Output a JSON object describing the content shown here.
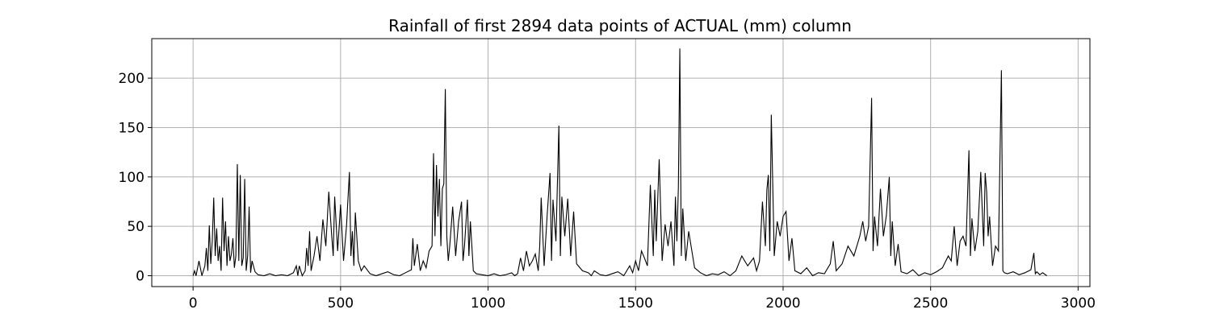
{
  "chart_data": {
    "type": "line",
    "title": "Rainfall of first 2894 data points of ACTUAL (mm) column",
    "xlabel": "",
    "ylabel": "",
    "xlim": [
      -140,
      3040
    ],
    "ylim": [
      -11,
      240
    ],
    "x_ticks": [
      0,
      500,
      1000,
      1500,
      2000,
      2500,
      3000
    ],
    "x_tick_labels": [
      "0",
      "500",
      "1000",
      "1500",
      "2000",
      "2500",
      "3000"
    ],
    "y_ticks": [
      0,
      50,
      100,
      150,
      200
    ],
    "y_tick_labels": [
      "0",
      "50",
      "100",
      "150",
      "200"
    ],
    "grid": true,
    "line_color": "#000000",
    "series": [
      {
        "x": [
          0,
          5,
          10,
          20,
          30,
          40,
          45,
          50,
          55,
          60,
          65,
          70,
          75,
          80,
          85,
          90,
          95,
          100,
          105,
          110,
          115,
          120,
          125,
          130,
          135,
          140,
          145,
          150,
          155,
          160,
          165,
          170,
          175,
          180,
          185,
          190,
          195,
          200,
          210,
          220,
          240,
          260,
          280,
          300,
          320,
          340,
          350,
          355,
          360,
          370,
          380,
          385,
          390,
          395,
          400,
          410,
          420,
          430,
          440,
          450,
          460,
          470,
          475,
          480,
          490,
          500,
          510,
          520,
          530,
          535,
          540,
          545,
          550,
          560,
          570,
          580,
          600,
          620,
          640,
          660,
          680,
          700,
          720,
          740,
          745,
          750,
          760,
          770,
          780,
          790,
          800,
          810,
          815,
          820,
          825,
          830,
          835,
          840,
          845,
          850,
          855,
          860,
          865,
          870,
          880,
          890,
          900,
          910,
          915,
          920,
          930,
          935,
          940,
          950,
          960,
          980,
          1000,
          1020,
          1040,
          1060,
          1080,
          1090,
          1100,
          1110,
          1120,
          1130,
          1140,
          1150,
          1160,
          1170,
          1175,
          1180,
          1190,
          1200,
          1210,
          1215,
          1220,
          1230,
          1240,
          1245,
          1250,
          1260,
          1270,
          1280,
          1290,
          1300,
          1320,
          1340,
          1350,
          1360,
          1380,
          1400,
          1420,
          1440,
          1460,
          1480,
          1490,
          1500,
          1510,
          1520,
          1530,
          1540,
          1550,
          1560,
          1565,
          1570,
          1580,
          1590,
          1600,
          1610,
          1620,
          1630,
          1635,
          1640,
          1645,
          1650,
          1655,
          1660,
          1670,
          1680,
          1700,
          1720,
          1740,
          1760,
          1780,
          1800,
          1820,
          1840,
          1860,
          1880,
          1900,
          1910,
          1920,
          1930,
          1940,
          1945,
          1950,
          1955,
          1960,
          1970,
          1980,
          1990,
          2000,
          2010,
          2020,
          2030,
          2040,
          2060,
          2080,
          2100,
          2120,
          2140,
          2160,
          2170,
          2180,
          2200,
          2220,
          2240,
          2260,
          2270,
          2280,
          2290,
          2300,
          2305,
          2310,
          2320,
          2330,
          2340,
          2350,
          2360,
          2365,
          2370,
          2380,
          2390,
          2400,
          2420,
          2440,
          2460,
          2480,
          2500,
          2520,
          2540,
          2560,
          2570,
          2580,
          2590,
          2600,
          2610,
          2620,
          2630,
          2635,
          2640,
          2650,
          2660,
          2670,
          2680,
          2685,
          2690,
          2695,
          2700,
          2710,
          2720,
          2730,
          2740,
          2745,
          2750,
          2760,
          2780,
          2800,
          2820,
          2840,
          2850,
          2855,
          2860,
          2870,
          2880,
          2894
        ],
        "y": [
          0,
          5,
          0,
          15,
          0,
          10,
          28,
          5,
          51,
          12,
          35,
          79,
          20,
          48,
          15,
          30,
          5,
          79,
          25,
          55,
          10,
          40,
          15,
          22,
          38,
          8,
          20,
          113,
          15,
          102,
          10,
          18,
          98,
          5,
          20,
          70,
          3,
          15,
          4,
          1,
          0,
          2,
          0,
          1,
          0,
          3,
          10,
          0,
          10,
          0,
          5,
          28,
          10,
          45,
          5,
          20,
          40,
          15,
          57,
          30,
          85,
          40,
          20,
          80,
          25,
          72,
          15,
          50,
          105,
          20,
          45,
          10,
          64,
          15,
          5,
          10,
          2,
          0,
          2,
          4,
          1,
          0,
          3,
          6,
          38,
          10,
          32,
          5,
          15,
          8,
          25,
          30,
          124,
          40,
          112,
          60,
          98,
          30,
          88,
          93,
          189,
          40,
          15,
          30,
          70,
          20,
          55,
          75,
          15,
          30,
          77,
          20,
          55,
          5,
          2,
          1,
          0,
          2,
          0,
          1,
          3,
          0,
          2,
          18,
          5,
          25,
          10,
          15,
          22,
          5,
          30,
          79,
          10,
          60,
          104,
          15,
          77,
          35,
          152,
          20,
          80,
          40,
          78,
          20,
          65,
          12,
          5,
          3,
          0,
          5,
          1,
          0,
          2,
          4,
          0,
          10,
          3,
          15,
          5,
          25,
          18,
          10,
          92,
          20,
          87,
          35,
          118,
          15,
          52,
          30,
          55,
          10,
          80,
          35,
          89,
          230,
          20,
          68,
          15,
          45,
          8,
          3,
          0,
          2,
          1,
          4,
          0,
          5,
          20,
          10,
          18,
          5,
          15,
          75,
          30,
          87,
          102,
          25,
          163,
          20,
          55,
          40,
          60,
          65,
          15,
          38,
          5,
          2,
          8,
          0,
          3,
          2,
          12,
          35,
          5,
          12,
          30,
          20,
          40,
          55,
          35,
          50,
          180,
          25,
          60,
          30,
          88,
          40,
          61,
          100,
          20,
          55,
          10,
          32,
          4,
          2,
          6,
          0,
          3,
          1,
          4,
          8,
          20,
          15,
          50,
          10,
          35,
          40,
          30,
          127,
          20,
          58,
          25,
          45,
          105,
          30,
          104,
          85,
          40,
          60,
          10,
          30,
          25,
          208,
          5,
          3,
          2,
          4,
          1,
          3,
          6,
          23,
          2,
          4,
          1,
          3,
          0
        ]
      }
    ]
  }
}
